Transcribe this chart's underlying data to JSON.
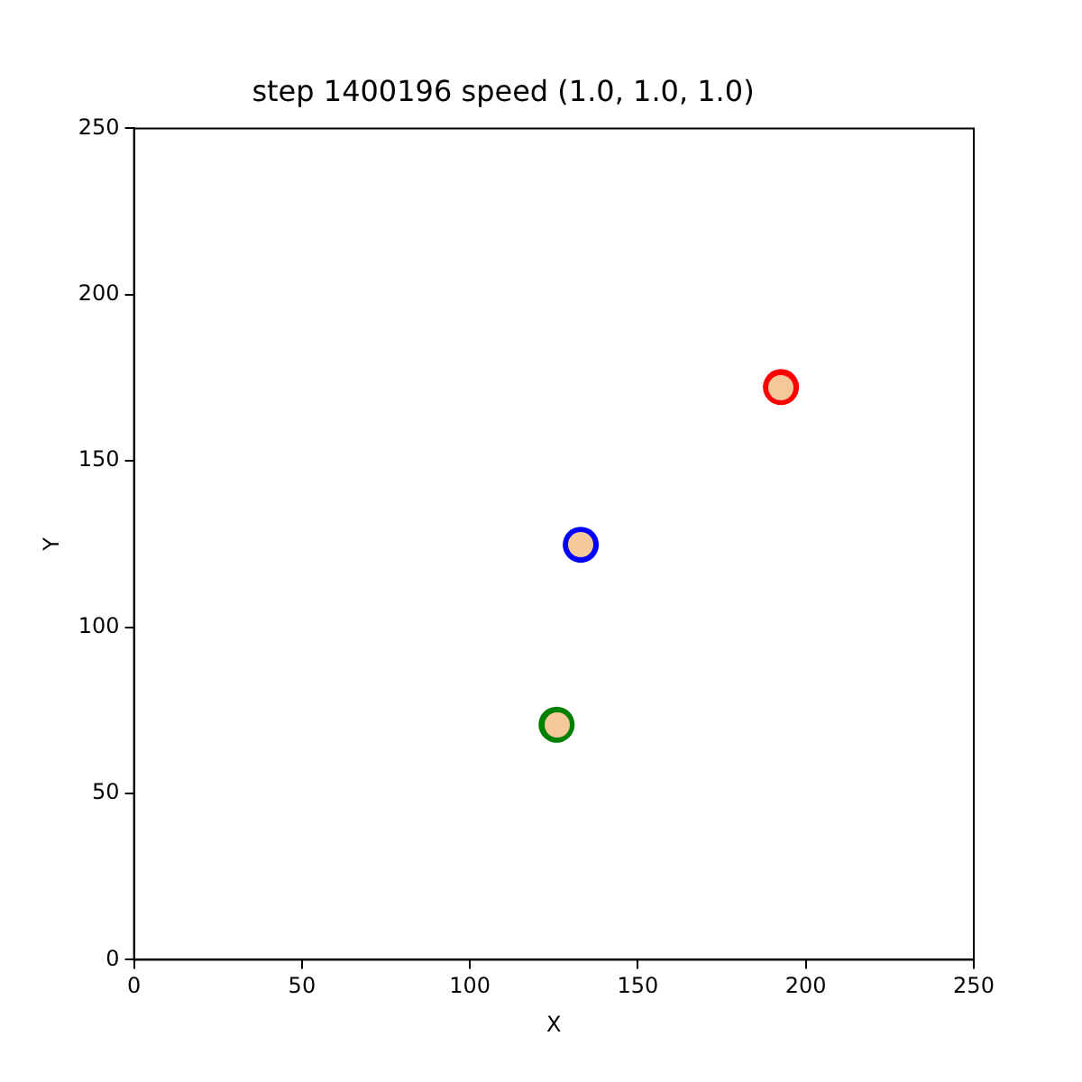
{
  "chart_data": {
    "type": "scatter",
    "title": "step 1400196 speed (1.0, 1.0, 1.0)",
    "xlabel": "X",
    "ylabel": "Y",
    "series": [
      {
        "color": "#ff0000",
        "x": [
          192.6
        ],
        "values": [
          172.2
        ]
      },
      {
        "color": "#0000ff",
        "x": [
          133.0
        ],
        "values": [
          124.8
        ]
      },
      {
        "color": "#008000",
        "x": [
          125.8
        ],
        "values": [
          70.7
        ]
      }
    ],
    "xlim": [
      0,
      250
    ],
    "ylim": [
      0,
      250
    ],
    "xticks": [
      0,
      50,
      100,
      150,
      200,
      250
    ],
    "yticks": [
      0,
      50,
      100,
      150,
      200,
      250
    ],
    "grid": false,
    "legend": false,
    "marker": "circle"
  }
}
